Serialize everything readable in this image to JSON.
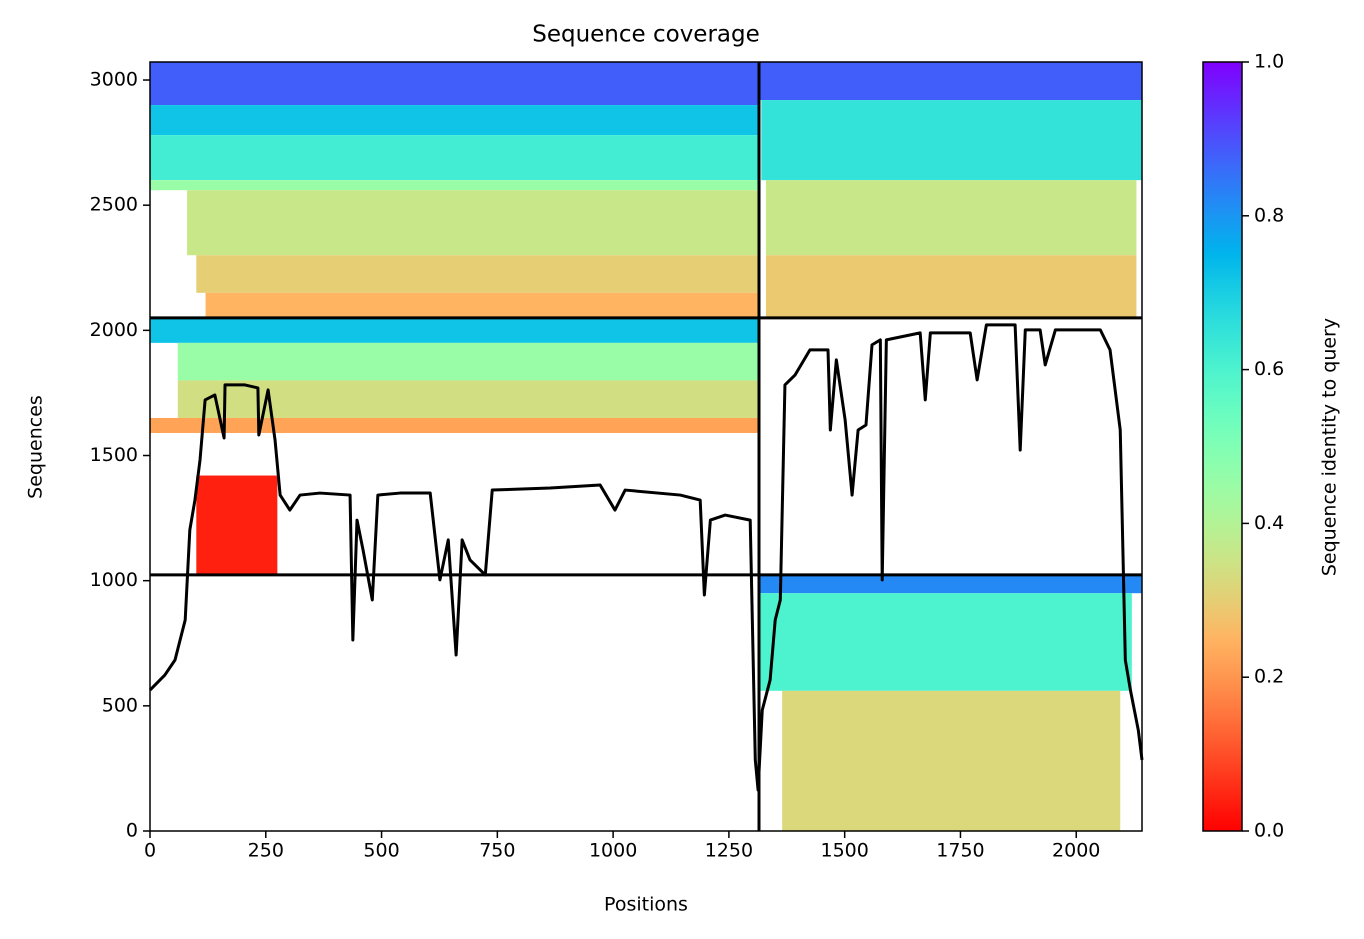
{
  "chart_data": {
    "type": "coverage",
    "title": "Sequence coverage",
    "xlabel": "Positions",
    "ylabel": "Sequences",
    "xlim": [
      0,
      2142
    ],
    "ylim": [
      0,
      3072
    ],
    "xticks": [
      0,
      250,
      500,
      750,
      1000,
      1250,
      1500,
      1750,
      2000
    ],
    "yticks": [
      0,
      500,
      1000,
      1500,
      2000,
      2500,
      3000
    ],
    "colormap": "rainbow_r",
    "colorbar": {
      "label": "Sequence identity to query",
      "lim": [
        0,
        1
      ],
      "ticks": [
        {
          "value": 0,
          "label": "0.0"
        },
        {
          "value": 0.2,
          "label": "0.2"
        },
        {
          "value": 0.4,
          "label": "0.4"
        },
        {
          "value": 0.6,
          "label": "0.6"
        },
        {
          "value": 0.8,
          "label": "0.8"
        },
        {
          "value": 1,
          "label": "1.0"
        }
      ]
    },
    "bands": [
      {
        "x": [
          0,
          1315
        ],
        "y": [
          2900,
          3072
        ],
        "identity": 0.88
      },
      {
        "x": [
          0,
          1315
        ],
        "y": [
          2780,
          2900
        ],
        "identity": 0.72
      },
      {
        "x": [
          0,
          1315
        ],
        "y": [
          2600,
          2780
        ],
        "identity": 0.62
      },
      {
        "x": [
          0,
          1315
        ],
        "y": [
          2560,
          2600
        ],
        "identity": 0.45
      },
      {
        "x": [
          80,
          1315
        ],
        "y": [
          2300,
          2560
        ],
        "identity": 0.36
      },
      {
        "x": [
          100,
          1315
        ],
        "y": [
          2150,
          2300
        ],
        "identity": 0.3
      },
      {
        "x": [
          120,
          1315
        ],
        "y": [
          2050,
          2150
        ],
        "identity": 0.25
      },
      {
        "x": [
          1315,
          2142
        ],
        "y": [
          2920,
          3072
        ],
        "identity": 0.88
      },
      {
        "x": [
          1320,
          2142
        ],
        "y": [
          2600,
          2920
        ],
        "identity": 0.65
      },
      {
        "x": [
          1330,
          2130
        ],
        "y": [
          2300,
          2600
        ],
        "identity": 0.36
      },
      {
        "x": [
          1330,
          2130
        ],
        "y": [
          2050,
          2300
        ],
        "identity": 0.29
      },
      {
        "x": [
          0,
          1315
        ],
        "y": [
          1950,
          2050
        ],
        "identity": 0.72
      },
      {
        "x": [
          60,
          1315
        ],
        "y": [
          1800,
          1950
        ],
        "identity": 0.45
      },
      {
        "x": [
          60,
          1315
        ],
        "y": [
          1650,
          1800
        ],
        "identity": 0.34
      },
      {
        "x": [
          0,
          1315
        ],
        "y": [
          1590,
          1650
        ],
        "identity": 0.22
      },
      {
        "x": [
          100,
          275
        ],
        "y": [
          1023,
          1420
        ],
        "identity": 0.04
      },
      {
        "x": [
          1315,
          2142
        ],
        "y": [
          950,
          1023
        ],
        "identity": 0.82
      },
      {
        "x": [
          1315,
          2120
        ],
        "y": [
          560,
          950
        ],
        "identity": 0.6
      },
      {
        "x": [
          1365,
          2095
        ],
        "y": [
          0,
          560
        ],
        "identity": 0.32
      }
    ],
    "boundaries": {
      "x": [
        1315
      ],
      "y": [
        1023,
        2050
      ]
    },
    "coverage": {
      "x": [
        0,
        32,
        54,
        76,
        86,
        97,
        108,
        119,
        140,
        160,
        162,
        205,
        233,
        235,
        255,
        270,
        281,
        302,
        324,
        367,
        432,
        438,
        447,
        460,
        480,
        492,
        540,
        605,
        626,
        644,
        661,
        674,
        691,
        724,
        739,
        864,
        972,
        1004,
        1026,
        1145,
        1188,
        1197,
        1210,
        1242,
        1296,
        1307,
        1313,
        1322,
        1339,
        1350,
        1361,
        1371,
        1393,
        1425,
        1464,
        1469,
        1482,
        1501,
        1516,
        1529,
        1546,
        1559,
        1577,
        1581,
        1590,
        1663,
        1674,
        1685,
        1771,
        1786,
        1806,
        1868,
        1879,
        1890,
        1922,
        1933,
        1955,
        2052,
        2073,
        2095,
        2106,
        2117,
        2134,
        2142
      ],
      "values": [
        563,
        623,
        683,
        843,
        1203,
        1322,
        1482,
        1722,
        1742,
        1570,
        1782,
        1782,
        1770,
        1582,
        1762,
        1562,
        1342,
        1282,
        1342,
        1350,
        1342,
        763,
        1242,
        1123,
        923,
        1342,
        1350,
        1350,
        1003,
        1163,
        703,
        1163,
        1083,
        1023,
        1362,
        1370,
        1382,
        1282,
        1362,
        1342,
        1322,
        943,
        1242,
        1262,
        1242,
        284,
        164,
        483,
        603,
        843,
        923,
        1782,
        1822,
        1922,
        1922,
        1602,
        1882,
        1642,
        1342,
        1602,
        1622,
        1942,
        1962,
        1003,
        1962,
        1990,
        1722,
        1990,
        1990,
        1802,
        2022,
        2022,
        1522,
        2002,
        2002,
        1862,
        2002,
        2002,
        1922,
        1602,
        683,
        563,
        403,
        284
      ],
      "color": "#000000"
    }
  }
}
